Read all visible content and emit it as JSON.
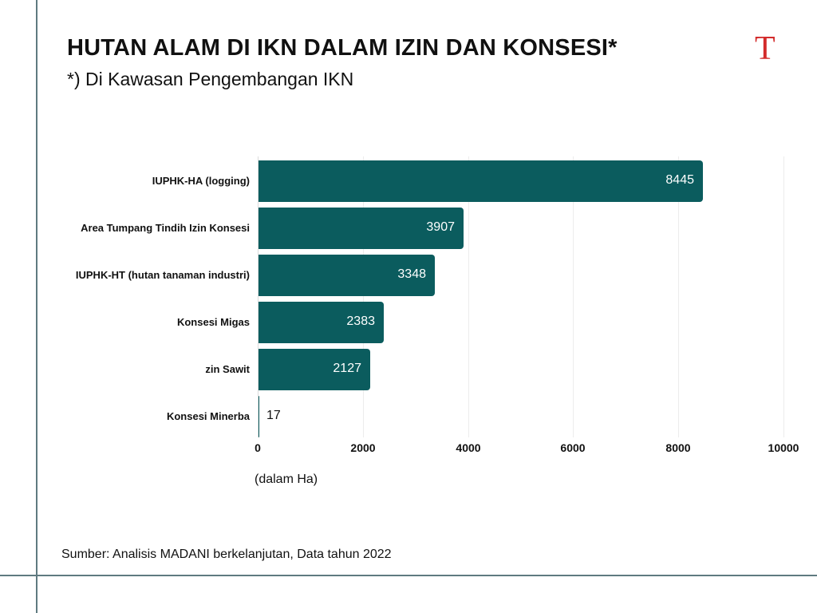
{
  "header": {
    "title": "HUTAN ALAM DI IKN DALAM IZIN DAN KONSESI*",
    "subtitle": "*) Di Kawasan Pengembangan IKN",
    "logo_letter": "T"
  },
  "colors": {
    "bar": "#0b5c5e",
    "logo": "#d32b2b",
    "rule": "#5f7a80"
  },
  "footer": {
    "source": "Sumber: Analisis MADANI berkelanjutan, Data tahun 2022"
  },
  "chart_data": {
    "type": "bar",
    "orientation": "horizontal",
    "title": "HUTAN ALAM DI IKN DALAM IZIN DAN KONSESI*",
    "subtitle": "*) Di Kawasan Pengembangan IKN",
    "categories": [
      "IUPHK-HA (logging)",
      "Area Tumpang Tindih Izin Konsesi",
      "IUPHK-HT (hutan tanaman industri)",
      "Konsesi Migas",
      "zin Sawit",
      "Konsesi Minerba"
    ],
    "values": [
      8445,
      3907,
      3348,
      2383,
      2127,
      17
    ],
    "value_labels": [
      "8445",
      "3907",
      "3348",
      "2383",
      "2127",
      "17"
    ],
    "xlabel": "(dalam Ha)",
    "ylabel": "",
    "xlim": [
      0,
      10000
    ],
    "xticks": [
      "0",
      "2000",
      "4000",
      "6000",
      "8000",
      "10000"
    ],
    "grid": true,
    "legend": "none",
    "source": "Sumber: Analisis MADANI berkelanjutan, Data tahun 2022"
  }
}
